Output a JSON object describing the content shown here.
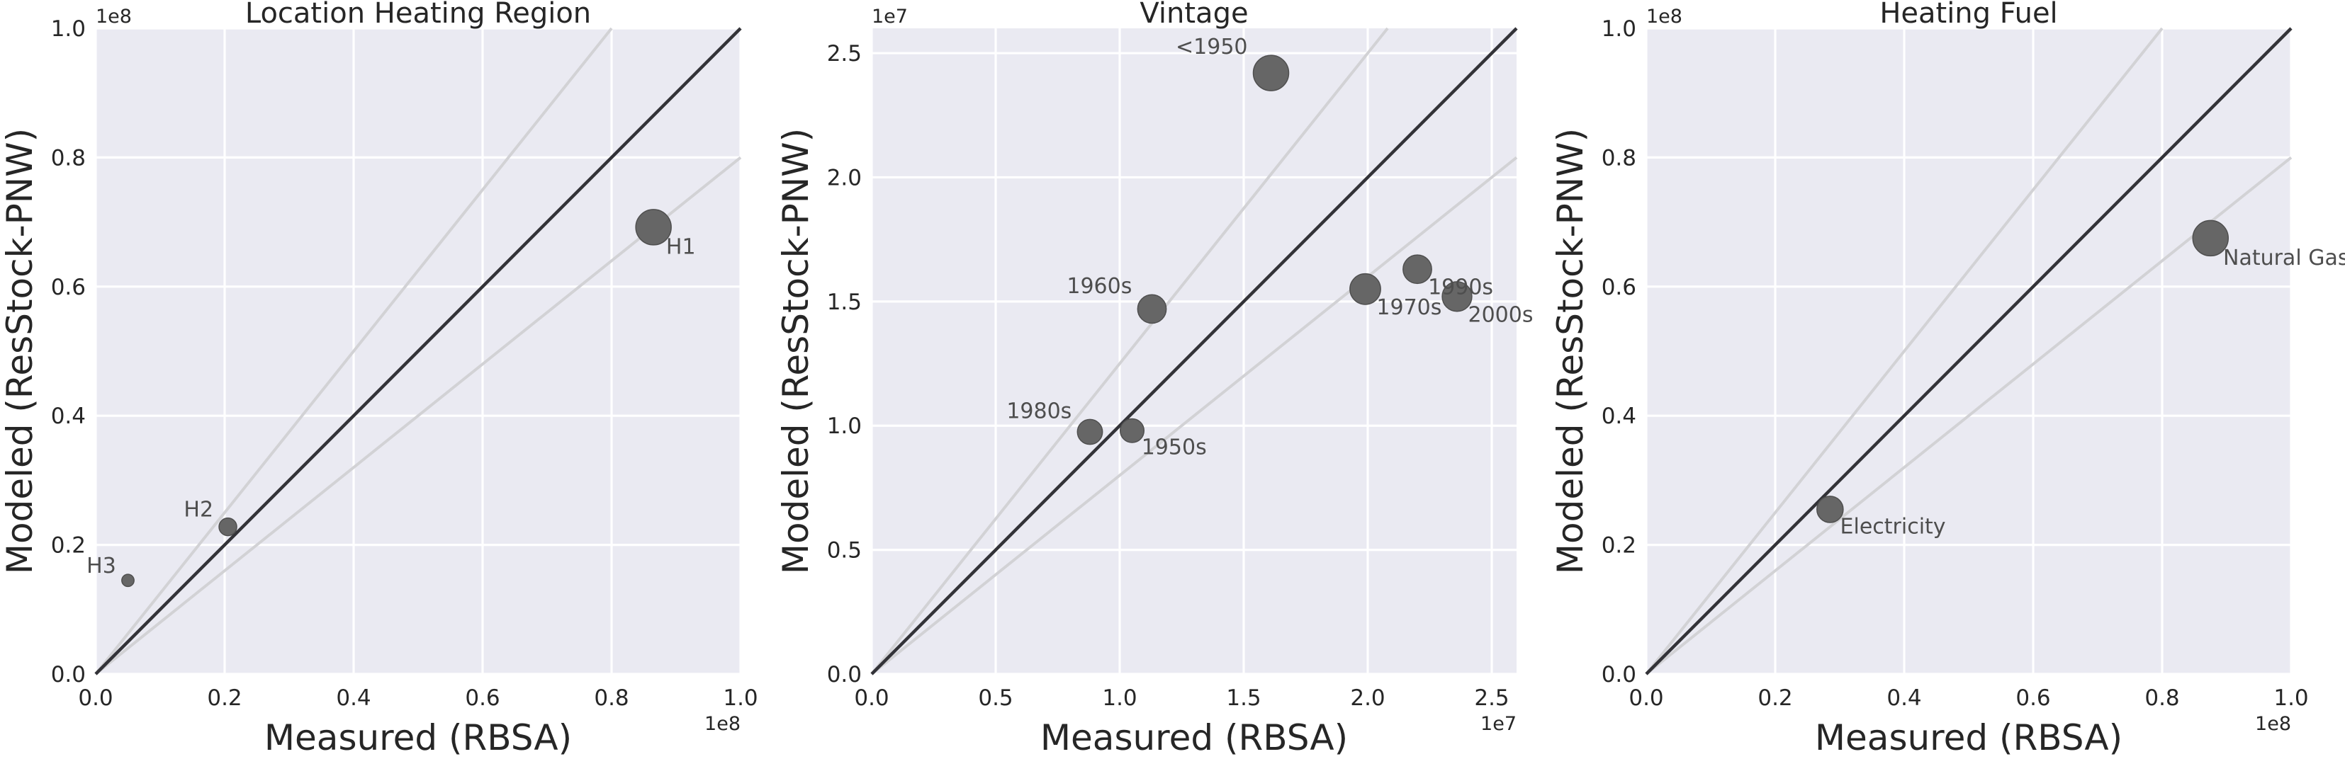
{
  "chart_data": [
    {
      "type": "scatter",
      "title": "Location Heating Region",
      "xlabel": "Measured (RBSA)",
      "ylabel": "Modeled (ResStock-PNW)",
      "xlim": [
        0,
        100000000
      ],
      "ylim": [
        0,
        100000000
      ],
      "x_ticks": [
        0,
        20000000,
        40000000,
        60000000,
        80000000,
        100000000
      ],
      "x_tick_labels": [
        "0.0",
        "0.2",
        "0.4",
        "0.6",
        "0.8",
        "1.0"
      ],
      "y_ticks": [
        0,
        20000000,
        40000000,
        60000000,
        80000000,
        100000000
      ],
      "y_tick_labels": [
        "0.0",
        "0.2",
        "0.4",
        "0.6",
        "0.8",
        "1.0"
      ],
      "x_exponent_label": "1e8",
      "y_exponent_label": "1e8",
      "grid": true,
      "reference_lines": {
        "identity_slope": 1,
        "band_slopes": [
          0.8,
          1.25
        ]
      },
      "points": [
        {
          "label": "H1",
          "x": 86500000,
          "y": 69200000,
          "size": 100,
          "label_position": "lower-right"
        },
        {
          "label": "H2",
          "x": 20500000,
          "y": 22800000,
          "size": 25,
          "label_position": "upper-left"
        },
        {
          "label": "H3",
          "x": 5000000,
          "y": 14500000,
          "size": 12,
          "label_position": "upper-left"
        }
      ]
    },
    {
      "type": "scatter",
      "title": "Vintage",
      "xlabel": "Measured (RBSA)",
      "ylabel": "Modeled (ResStock-PNW)",
      "xlim": [
        0,
        26000000
      ],
      "ylim": [
        0,
        26000000
      ],
      "x_ticks": [
        0,
        5000000,
        10000000,
        15000000,
        20000000,
        25000000
      ],
      "x_tick_labels": [
        "0.0",
        "0.5",
        "1.0",
        "1.5",
        "2.0",
        "2.5"
      ],
      "y_ticks": [
        0,
        5000000,
        10000000,
        15000000,
        20000000,
        25000000
      ],
      "y_tick_labels": [
        "0.0",
        "0.5",
        "1.0",
        "1.5",
        "2.0",
        "2.5"
      ],
      "x_exponent_label": "1e7",
      "y_exponent_label": "1e7",
      "grid": true,
      "reference_lines": {
        "identity_slope": 1,
        "band_slopes": [
          0.8,
          1.25
        ]
      },
      "points": [
        {
          "label": "<1950",
          "x": 16100000,
          "y": 24200000,
          "size": 100,
          "label_position": "upper-left"
        },
        {
          "label": "1960s",
          "x": 11300000,
          "y": 14700000,
          "size": 65,
          "label_position": "upper-left"
        },
        {
          "label": "1970s",
          "x": 19900000,
          "y": 15500000,
          "size": 75,
          "label_position": "lower-right"
        },
        {
          "label": "1990s",
          "x": 22000000,
          "y": 16300000,
          "size": 65,
          "label_position": "lower-right"
        },
        {
          "label": "2000s",
          "x": 23600000,
          "y": 15200000,
          "size": 70,
          "label_position": "lower-right"
        },
        {
          "label": "1980s",
          "x": 8800000,
          "y": 9750000,
          "size": 50,
          "label_position": "upper-left"
        },
        {
          "label": "1950s",
          "x": 10500000,
          "y": 9800000,
          "size": 45,
          "label_position": "lower-right"
        }
      ]
    },
    {
      "type": "scatter",
      "title": "Heating Fuel",
      "xlabel": "Measured (RBSA)",
      "ylabel": "Modeled (ResStock-PNW)",
      "xlim": [
        0,
        100000000
      ],
      "ylim": [
        0,
        100000000
      ],
      "x_ticks": [
        0,
        20000000,
        40000000,
        60000000,
        80000000,
        100000000
      ],
      "x_tick_labels": [
        "0.0",
        "0.2",
        "0.4",
        "0.6",
        "0.8",
        "1.0"
      ],
      "y_ticks": [
        0,
        20000000,
        40000000,
        60000000,
        80000000,
        100000000
      ],
      "y_tick_labels": [
        "0.0",
        "0.2",
        "0.4",
        "0.6",
        "0.8",
        "1.0"
      ],
      "x_exponent_label": "1e8",
      "y_exponent_label": "1e8",
      "grid": true,
      "reference_lines": {
        "identity_slope": 1,
        "band_slopes": [
          0.8,
          1.25
        ]
      },
      "points": [
        {
          "label": "Natural Gas",
          "x": 87500000,
          "y": 67500000,
          "size": 100,
          "label_position": "lower-right"
        },
        {
          "label": "Electricity",
          "x": 28500000,
          "y": 25500000,
          "size": 55,
          "label_position": "lower-right"
        }
      ]
    }
  ],
  "colors": {
    "panel_background": "#eaeaf2",
    "grid": "#ffffff",
    "identity_line": "#333338",
    "band_lines": "#d2d2d5",
    "points": "#666666",
    "text": "#262626",
    "annotation_text": "#4e4e4e"
  }
}
